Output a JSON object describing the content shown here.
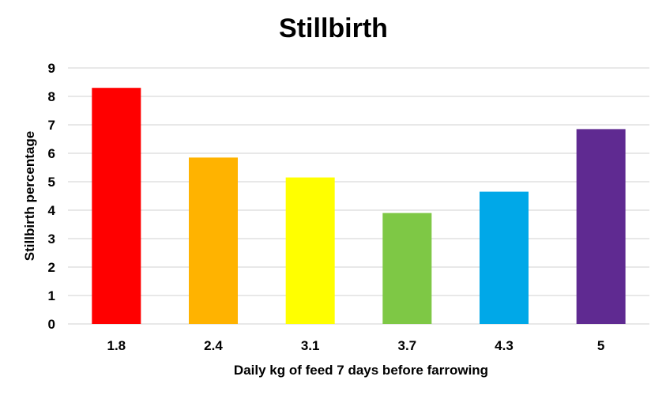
{
  "chart_data": {
    "type": "bar",
    "title": "Stillbirth",
    "xlabel": "Daily kg of feed  7 days before farrowing",
    "ylabel": "Stillbirth percentage",
    "categories": [
      "1.8",
      "2.4",
      "3.1",
      "3.7",
      "4.3",
      "5"
    ],
    "values": [
      8.3,
      5.85,
      5.15,
      3.9,
      4.65,
      6.85
    ],
    "colors": [
      "#ff0000",
      "#ffb300",
      "#ffff00",
      "#7ec845",
      "#00a8e8",
      "#5f2a91"
    ],
    "ylim": [
      0,
      9
    ],
    "yticks": [
      "0",
      "1",
      "2",
      "3",
      "4",
      "5",
      "6",
      "7",
      "8",
      "9"
    ],
    "grid": true,
    "legend": "none"
  }
}
